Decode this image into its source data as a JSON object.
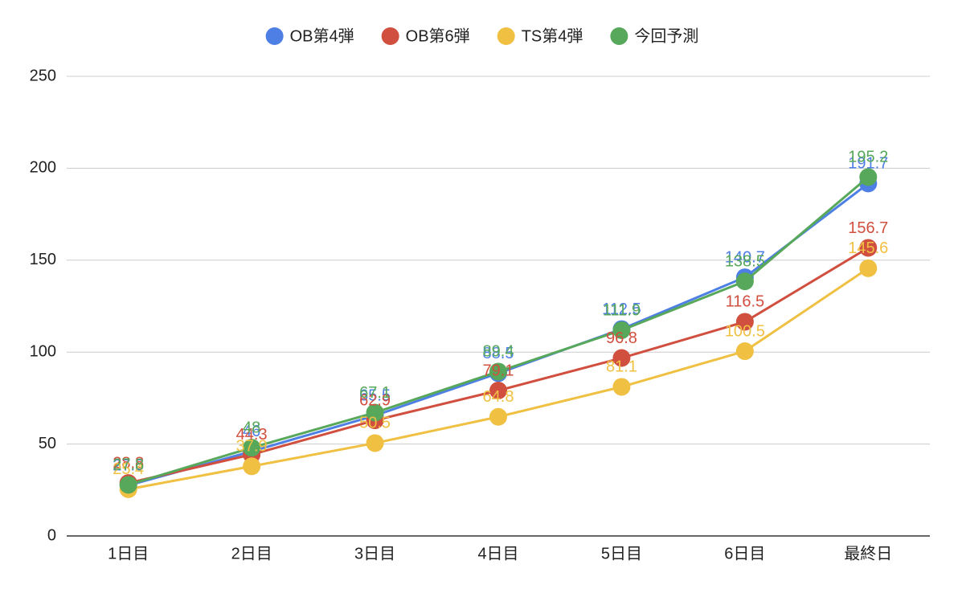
{
  "chart_data": {
    "type": "line",
    "categories": [
      "1日目",
      "2日目",
      "3日目",
      "4日目",
      "5日目",
      "6日目",
      "最終日"
    ],
    "series": [
      {
        "name": "OB第4弾",
        "color": "#4e7fe5",
        "values": [
          27.5,
          46,
          65.5,
          88.5,
          112.5,
          140.7,
          191.7
        ]
      },
      {
        "name": "OB第6弾",
        "color": "#d14f3f",
        "values": [
          28.8,
          44.3,
          62.9,
          79.1,
          96.8,
          116.5,
          156.7
        ]
      },
      {
        "name": "TS第4弾",
        "color": "#f0c042",
        "values": [
          25.4,
          37.9,
          50.5,
          64.8,
          81.1,
          100.5,
          145.6
        ]
      },
      {
        "name": "今回予測",
        "color": "#57a85a",
        "values": [
          27.8,
          48,
          67.1,
          89.4,
          111.9,
          138.5,
          195.2
        ]
      }
    ],
    "ylim": [
      0,
      250
    ],
    "yticks": [
      0,
      50,
      100,
      150,
      200,
      250
    ],
    "grid": true
  }
}
